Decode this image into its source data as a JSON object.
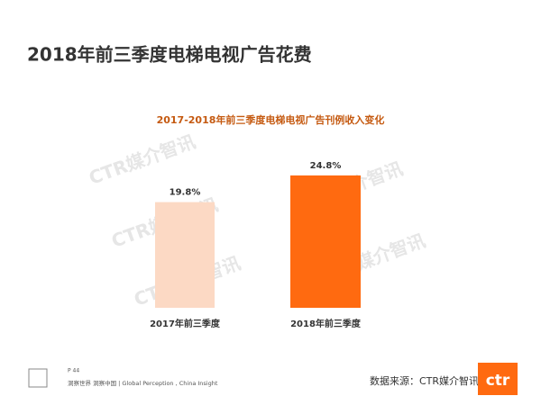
{
  "page_title": "2018年前三季度电梯电视广告花费",
  "chart_data": {
    "type": "bar",
    "title": "2017-2018年前三季度电梯电视广告刊例收入变化",
    "categories": [
      "2017年前三季度",
      "2018年前三季度"
    ],
    "values": [
      19.8,
      24.8
    ],
    "value_labels": [
      "19.8%",
      "24.8%"
    ],
    "colors": [
      "#fcd9c4",
      "#ff6a10"
    ]
  },
  "watermark": "CTR媒介智讯",
  "footer": {
    "page": "P 44",
    "slogan": "洞察世界  洞察中国 | Global Perception , China Insight",
    "source": "数据来源：CTR媒介智讯",
    "logo": "ctr"
  }
}
